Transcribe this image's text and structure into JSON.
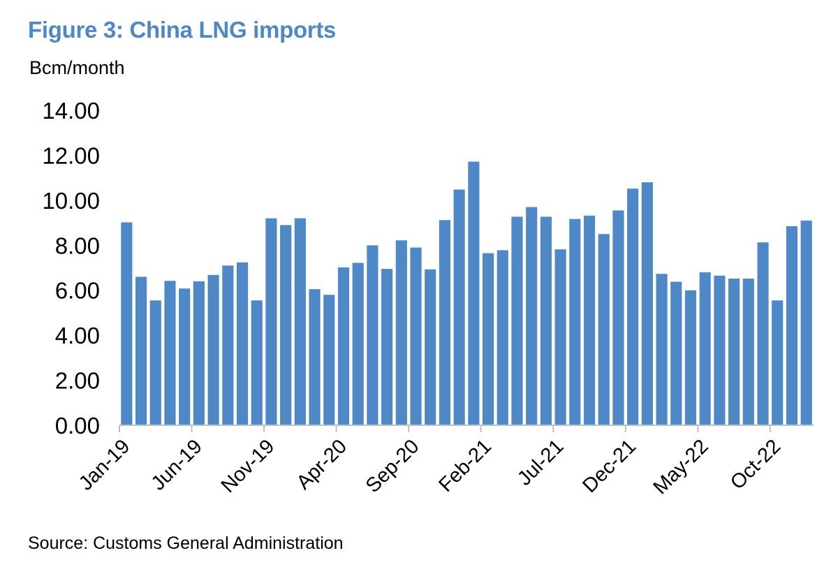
{
  "title": "Figure 3: China LNG imports",
  "unit_label": "Bcm/month",
  "source": "Source: Customs General Administration",
  "colors": {
    "title": "#4F88C6",
    "bar": "#4F88C6",
    "axis": "#BFBFBF"
  },
  "chart_data": {
    "type": "bar",
    "title": "Figure 3: China LNG imports",
    "ylabel": "Bcm/month",
    "xlabel": "",
    "ylim": [
      0,
      14
    ],
    "y_ticks": [
      "0.00",
      "2.00",
      "4.00",
      "6.00",
      "8.00",
      "10.00",
      "12.00",
      "14.00"
    ],
    "x_tick_labels": [
      "Jan-19",
      "Jun-19",
      "Nov-19",
      "Apr-20",
      "Sep-20",
      "Feb-21",
      "Jul-21",
      "Dec-21",
      "May-22",
      "Oct-22"
    ],
    "grid": false,
    "categories": [
      "Jan-19",
      "Feb-19",
      "Mar-19",
      "Apr-19",
      "May-19",
      "Jun-19",
      "Jul-19",
      "Aug-19",
      "Sep-19",
      "Oct-19",
      "Nov-19",
      "Dec-19",
      "Jan-20",
      "Feb-20",
      "Mar-20",
      "Apr-20",
      "May-20",
      "Jun-20",
      "Jul-20",
      "Aug-20",
      "Sep-20",
      "Oct-20",
      "Nov-20",
      "Dec-20",
      "Jan-21",
      "Feb-21",
      "Mar-21",
      "Apr-21",
      "May-21",
      "Jun-21",
      "Jul-21",
      "Aug-21",
      "Sep-21",
      "Oct-21",
      "Nov-21",
      "Dec-21",
      "Jan-22",
      "Feb-22",
      "Mar-22",
      "Apr-22",
      "May-22",
      "Jun-22",
      "Jul-22",
      "Aug-22",
      "Sep-22",
      "Oct-22",
      "Nov-22",
      "Dec-22"
    ],
    "values": [
      9.02,
      6.6,
      5.55,
      6.42,
      6.08,
      6.4,
      6.68,
      7.1,
      7.24,
      5.55,
      9.2,
      8.9,
      9.2,
      6.05,
      5.8,
      7.02,
      7.22,
      8.0,
      6.95,
      8.22,
      7.9,
      6.93,
      9.12,
      10.48,
      11.72,
      7.65,
      7.78,
      9.27,
      9.7,
      9.27,
      7.82,
      9.17,
      9.32,
      8.5,
      9.55,
      10.52,
      10.8,
      6.73,
      6.38,
      6.0,
      6.8,
      6.65,
      6.52,
      6.52,
      8.13,
      5.55,
      8.85,
      9.1
    ]
  }
}
